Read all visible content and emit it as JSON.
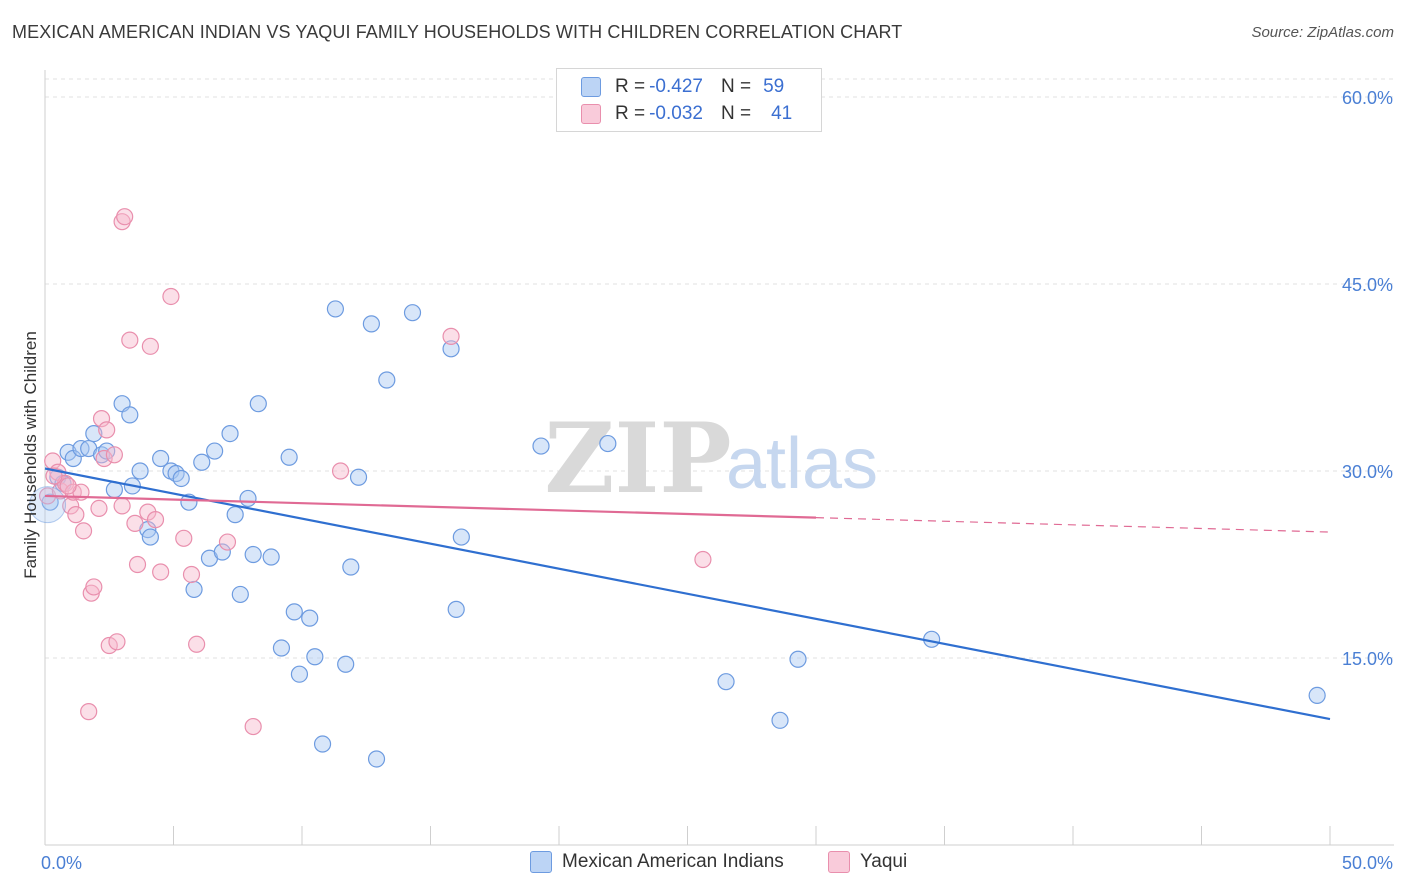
{
  "title": "MEXICAN AMERICAN INDIAN VS YAQUI FAMILY HOUSEHOLDS WITH CHILDREN CORRELATION CHART",
  "source": "Source: ZipAtlas.com",
  "watermark": {
    "zip": "ZIP",
    "atlas": "atlas"
  },
  "legend": {
    "rows": [
      {
        "r_label": "R =",
        "r_value": "-0.427",
        "n_label": "N =",
        "n_value": "59"
      },
      {
        "r_label": "R =",
        "r_value": "-0.032",
        "n_label": "N =",
        "n_value": "41"
      }
    ]
  },
  "colors": {
    "blue_fill": "#a9c8f2",
    "blue_stroke": "#6d9be0",
    "blue_line": "#2f6fd0",
    "pink_fill": "#f6b9cd",
    "pink_stroke": "#e98fad",
    "pink_line": "#e06a94",
    "grid": "#e2e2e2",
    "tick_text": "#4a7fd4"
  },
  "chart_data": {
    "type": "scatter",
    "title": "MEXICAN AMERICAN INDIAN VS YAQUI FAMILY HOUSEHOLDS WITH CHILDREN CORRELATION CHART",
    "xlabel": "",
    "ylabel": "Family Households with Children",
    "xlim": [
      0,
      50
    ],
    "ylim": [
      0,
      60
    ],
    "x_tick_labels": [
      "0.0%",
      "50.0%"
    ],
    "y_ticks": [
      15,
      30,
      45,
      60
    ],
    "y_tick_labels": [
      "15.0%",
      "30.0%",
      "45.0%",
      "60.0%"
    ],
    "grid": true,
    "series": [
      {
        "name": "Mexican American Indians",
        "color": "blue",
        "r": -0.427,
        "n": 59,
        "trend": {
          "x": [
            0,
            50
          ],
          "y": [
            30.2,
            10.1
          ],
          "dashed_from": null
        },
        "points": [
          [
            0.2,
            27.5
          ],
          [
            0.5,
            29.5
          ],
          [
            0.7,
            29.0
          ],
          [
            0.9,
            31.5
          ],
          [
            1.1,
            31.0
          ],
          [
            1.4,
            31.8
          ],
          [
            1.7,
            31.8
          ],
          [
            1.9,
            33.0
          ],
          [
            2.2,
            31.3
          ],
          [
            2.4,
            31.6
          ],
          [
            2.7,
            28.5
          ],
          [
            3.0,
            35.4
          ],
          [
            3.3,
            34.5
          ],
          [
            3.4,
            28.8
          ],
          [
            3.7,
            30.0
          ],
          [
            4.0,
            25.3
          ],
          [
            4.1,
            24.7
          ],
          [
            4.5,
            31.0
          ],
          [
            4.9,
            30.0
          ],
          [
            5.1,
            29.8
          ],
          [
            5.3,
            29.4
          ],
          [
            5.6,
            27.5
          ],
          [
            5.8,
            20.5
          ],
          [
            6.1,
            30.7
          ],
          [
            6.4,
            23.0
          ],
          [
            6.6,
            31.6
          ],
          [
            6.9,
            23.5
          ],
          [
            7.2,
            33.0
          ],
          [
            7.4,
            26.5
          ],
          [
            7.6,
            20.1
          ],
          [
            7.9,
            27.8
          ],
          [
            8.1,
            23.3
          ],
          [
            8.3,
            35.4
          ],
          [
            8.8,
            23.1
          ],
          [
            9.2,
            15.8
          ],
          [
            9.5,
            31.1
          ],
          [
            9.7,
            18.7
          ],
          [
            9.9,
            13.7
          ],
          [
            10.3,
            18.2
          ],
          [
            10.5,
            15.1
          ],
          [
            10.8,
            8.1
          ],
          [
            11.3,
            43.0
          ],
          [
            11.7,
            14.5
          ],
          [
            11.9,
            22.3
          ],
          [
            12.2,
            29.5
          ],
          [
            12.7,
            41.8
          ],
          [
            12.9,
            6.9
          ],
          [
            13.3,
            37.3
          ],
          [
            14.3,
            42.7
          ],
          [
            15.8,
            39.8
          ],
          [
            16.0,
            18.9
          ],
          [
            16.2,
            24.7
          ],
          [
            19.3,
            32.0
          ],
          [
            21.9,
            32.2
          ],
          [
            26.5,
            13.1
          ],
          [
            28.6,
            10.0
          ],
          [
            29.3,
            14.9
          ],
          [
            34.5,
            16.5
          ],
          [
            49.5,
            12.0
          ]
        ]
      },
      {
        "name": "Yaqui",
        "color": "pink",
        "r": -0.032,
        "n": 41,
        "trend": {
          "x": [
            0,
            50
          ],
          "y": [
            28.0,
            25.1
          ],
          "dashed_from": 30
        },
        "points": [
          [
            0.1,
            28.0
          ],
          [
            0.3,
            30.8
          ],
          [
            0.5,
            29.9
          ],
          [
            0.6,
            28.4
          ],
          [
            0.8,
            29.0
          ],
          [
            1.0,
            27.2
          ],
          [
            1.1,
            28.3
          ],
          [
            1.2,
            26.5
          ],
          [
            1.4,
            28.3
          ],
          [
            1.5,
            25.2
          ],
          [
            1.7,
            10.7
          ],
          [
            1.8,
            20.2
          ],
          [
            1.9,
            20.7
          ],
          [
            2.1,
            27.0
          ],
          [
            2.2,
            34.2
          ],
          [
            2.3,
            31.0
          ],
          [
            2.4,
            33.3
          ],
          [
            2.5,
            16.0
          ],
          [
            2.7,
            31.3
          ],
          [
            2.8,
            16.3
          ],
          [
            3.0,
            27.2
          ],
          [
            3.0,
            50.0
          ],
          [
            3.1,
            50.4
          ],
          [
            3.3,
            40.5
          ],
          [
            3.5,
            25.8
          ],
          [
            3.6,
            22.5
          ],
          [
            4.0,
            26.7
          ],
          [
            4.1,
            40.0
          ],
          [
            4.3,
            26.1
          ],
          [
            4.5,
            21.9
          ],
          [
            4.9,
            44.0
          ],
          [
            5.4,
            24.6
          ],
          [
            5.7,
            21.7
          ],
          [
            5.9,
            16.1
          ],
          [
            7.1,
            24.3
          ],
          [
            8.1,
            9.5
          ],
          [
            11.5,
            30.0
          ],
          [
            15.8,
            40.8
          ],
          [
            25.6,
            22.9
          ],
          [
            0.35,
            29.6
          ],
          [
            0.9,
            28.8
          ]
        ]
      }
    ]
  },
  "bottom_legend": [
    "Mexican American Indians",
    "Yaqui"
  ]
}
